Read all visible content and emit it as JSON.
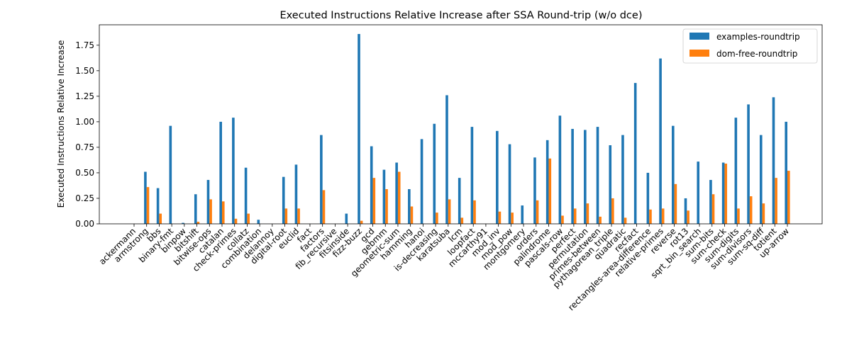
{
  "chart_data": {
    "type": "bar",
    "title": "Executed Instructions Relative Increase after SSA Round-trip (w/o dce)",
    "xlabel": "",
    "ylabel": "Executed Instructions Relative Increase",
    "ylim": [
      0,
      1.95
    ],
    "yticks": [
      "0.00",
      "0.25",
      "0.50",
      "0.75",
      "1.00",
      "1.25",
      "1.50",
      "1.75"
    ],
    "ytick_values": [
      0,
      0.25,
      0.5,
      0.75,
      1.0,
      1.25,
      1.5,
      1.75
    ],
    "grid": false,
    "legend_position": "top-right",
    "categories": [
      "ackermann",
      "armstrong",
      "bbs",
      "binary-fmt",
      "binpow",
      "bitshift",
      "bitwise-ops",
      "catalan",
      "check-primes",
      "collatz",
      "combination",
      "delannoy",
      "digital-root",
      "euclid",
      "fact",
      "factors",
      "fib_recursive",
      "fitsinside",
      "fizz-buzz",
      "gcd",
      "gebmm",
      "geometric-sum",
      "hamming",
      "hanoi",
      "is-decreasing",
      "karatsuba",
      "lcm",
      "loopfact",
      "mccarthy91",
      "mod_inv",
      "mod_pow",
      "montgomery",
      "orders",
      "palindrome",
      "pascals-row",
      "perfect",
      "permutation",
      "primes-between",
      "pythagorean_triple",
      "quadratic",
      "recfact",
      "rectangles-area-difference",
      "relative-primes",
      "reverse",
      "rot13",
      "sqrt_bin_search",
      "sum-bits",
      "sum-check",
      "sum-digits",
      "sum-divisors",
      "sum-sq-diff",
      "totient",
      "up-arrow"
    ],
    "series": [
      {
        "name": "examples-roundtrip",
        "color": "#1f77b4",
        "values": [
          0,
          0.51,
          0.35,
          0.96,
          0.01,
          0.29,
          0.43,
          1.0,
          1.04,
          0.55,
          0.04,
          0,
          0.46,
          0.58,
          0,
          0.87,
          0,
          0.1,
          1.86,
          0.76,
          0.53,
          0.6,
          0.34,
          0.83,
          0.98,
          1.26,
          0.45,
          0.95,
          0,
          0.91,
          0.78,
          0.18,
          0.65,
          0.82,
          1.06,
          0.93,
          0.92,
          0.95,
          0.77,
          0.87,
          1.38,
          0.5,
          1.62,
          0.96,
          0.25,
          0.61,
          0.43,
          0.6,
          1.04,
          1.17,
          0.87,
          1.24,
          1.0
        ]
      },
      {
        "name": "dom-free-roundtrip",
        "color": "#ff7f0e",
        "values": [
          0,
          0.36,
          0.1,
          0,
          0,
          0.02,
          0.24,
          0.22,
          0.05,
          0.1,
          0,
          0,
          0.15,
          0.15,
          0,
          0.33,
          0,
          0,
          0.03,
          0.45,
          0.34,
          0.51,
          0.17,
          0,
          0.11,
          0.24,
          0.06,
          0.23,
          0,
          0.12,
          0.11,
          0,
          0.23,
          0.64,
          0.08,
          0.15,
          0.2,
          0.07,
          0.25,
          0.06,
          0,
          0.14,
          0.15,
          0.39,
          0.13,
          0,
          0.29,
          0.59,
          0.15,
          0.27,
          0.2,
          0.45,
          0.52
        ]
      }
    ]
  }
}
